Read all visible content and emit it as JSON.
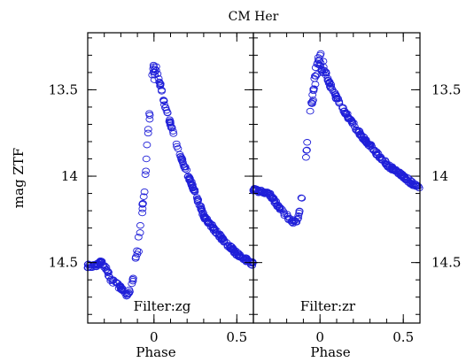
{
  "chart_data": {
    "type": "scatter",
    "title": "CM Her",
    "ylabel": "mag ZTF",
    "ylim": [
      14.85,
      13.17
    ],
    "y_ticks": [
      13.5,
      14,
      14.5
    ],
    "grid": false,
    "point_color": "#1f1fd8",
    "panels": [
      {
        "filter_label": "Filter:zg",
        "xlabel": "Phase",
        "xlim": [
          -0.4,
          0.6
        ],
        "x_ticks": [
          0,
          0.5
        ],
        "curve": [
          [
            -0.4,
            14.52
          ],
          [
            -0.35,
            14.52
          ],
          [
            -0.32,
            14.5
          ],
          [
            -0.29,
            14.53
          ],
          [
            -0.26,
            14.6
          ],
          [
            -0.22,
            14.63
          ],
          [
            -0.19,
            14.66
          ],
          [
            -0.16,
            14.69
          ],
          [
            -0.13,
            14.62
          ],
          [
            -0.11,
            14.5
          ],
          [
            -0.09,
            14.38
          ],
          [
            -0.07,
            14.18
          ],
          [
            -0.05,
            13.98
          ],
          [
            -0.035,
            13.75
          ],
          [
            -0.02,
            13.55
          ],
          [
            -0.01,
            13.42
          ],
          [
            0.0,
            13.4
          ],
          [
            0.02,
            13.41
          ],
          [
            0.04,
            13.48
          ],
          [
            0.06,
            13.57
          ],
          [
            0.1,
            13.7
          ],
          [
            0.15,
            13.86
          ],
          [
            0.2,
            13.98
          ],
          [
            0.25,
            14.1
          ],
          [
            0.3,
            14.23
          ],
          [
            0.35,
            14.29
          ],
          [
            0.4,
            14.35
          ],
          [
            0.45,
            14.4
          ],
          [
            0.5,
            14.45
          ],
          [
            0.55,
            14.48
          ],
          [
            0.6,
            14.51
          ]
        ]
      },
      {
        "filter_label": "Filter:zr",
        "xlabel": "Phase",
        "xlim": [
          -0.4,
          0.6
        ],
        "x_ticks": [
          0,
          0.5
        ],
        "curve": [
          [
            -0.4,
            14.08
          ],
          [
            -0.34,
            14.09
          ],
          [
            -0.3,
            14.11
          ],
          [
            -0.26,
            14.16
          ],
          [
            -0.22,
            14.21
          ],
          [
            -0.18,
            14.25
          ],
          [
            -0.15,
            14.27
          ],
          [
            -0.13,
            14.24
          ],
          [
            -0.11,
            14.12
          ],
          [
            -0.09,
            13.95
          ],
          [
            -0.07,
            13.74
          ],
          [
            -0.05,
            13.58
          ],
          [
            -0.035,
            13.46
          ],
          [
            -0.02,
            13.39
          ],
          [
            0.0,
            13.33
          ],
          [
            0.02,
            13.36
          ],
          [
            0.05,
            13.45
          ],
          [
            0.1,
            13.55
          ],
          [
            0.15,
            13.63
          ],
          [
            0.2,
            13.7
          ],
          [
            0.25,
            13.77
          ],
          [
            0.3,
            13.82
          ],
          [
            0.35,
            13.88
          ],
          [
            0.4,
            13.93
          ],
          [
            0.45,
            13.97
          ],
          [
            0.5,
            14.0
          ],
          [
            0.55,
            14.04
          ],
          [
            0.6,
            14.07
          ]
        ]
      }
    ]
  }
}
